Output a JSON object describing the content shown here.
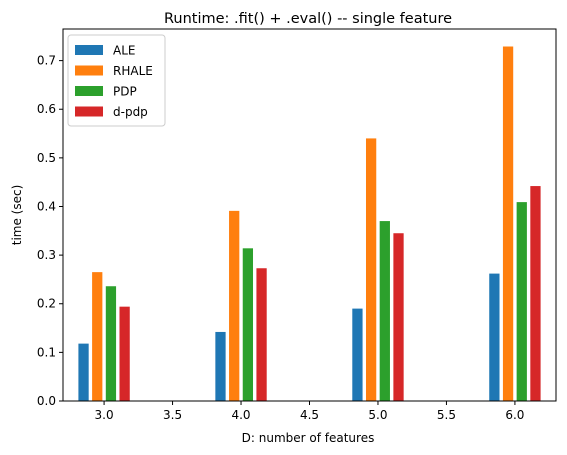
{
  "chart_data": {
    "type": "bar",
    "title": "Runtime: .fit() + .eval() -- single feature",
    "xlabel": "D: number of features",
    "ylabel": "time (sec)",
    "x": [
      3.0,
      4.0,
      5.0,
      6.0
    ],
    "xlim": [
      2.7,
      6.3
    ],
    "ylim": [
      0,
      0.765
    ],
    "xticks": [
      "3.0",
      "3.5",
      "4.0",
      "4.5",
      "5.0",
      "5.5",
      "6.0"
    ],
    "yticks": [
      "0.0",
      "0.1",
      "0.2",
      "0.3",
      "0.4",
      "0.5",
      "0.6",
      "0.7"
    ],
    "grid": false,
    "legend_position": "top-left",
    "series": [
      {
        "name": "ALE",
        "color": "#1f77b4",
        "values": [
          0.118,
          0.142,
          0.19,
          0.262
        ]
      },
      {
        "name": "RHALE",
        "color": "#ff7f0e",
        "values": [
          0.265,
          0.391,
          0.54,
          0.729
        ]
      },
      {
        "name": "PDP",
        "color": "#2ca02c",
        "values": [
          0.236,
          0.314,
          0.37,
          0.409
        ]
      },
      {
        "name": "d-pdp",
        "color": "#d62728",
        "values": [
          0.194,
          0.273,
          0.345,
          0.442
        ]
      }
    ]
  }
}
